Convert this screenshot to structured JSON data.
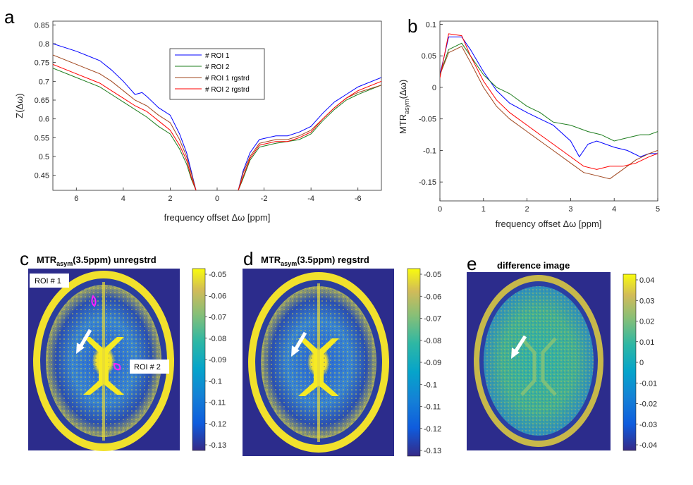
{
  "panel_labels": {
    "a": "a",
    "b": "b",
    "c": "c",
    "d": "d",
    "e": "e"
  },
  "colors": {
    "roi1": "#0000ff",
    "roi2": "#1e7d1e",
    "roi1_rgstrd": "#a0461e",
    "roi2_rgstrd": "#ff0000",
    "map_low": "#2c2c8c",
    "map_high": "#f8f014",
    "arrow": "#ffffff",
    "roi_marker": "#ff20ff"
  },
  "chart_data": [
    {
      "id": "a",
      "type": "line",
      "xlabel": "frequency offset Δω [ppm]",
      "ylabel": "Z(Δω)",
      "xlim": [
        7,
        -7
      ],
      "ylim": [
        0.41,
        0.86
      ],
      "xticks": [
        6,
        4,
        2,
        0,
        -2,
        -4,
        -6
      ],
      "xtick_labels": [
        "6",
        "4",
        "2",
        "0",
        "-2",
        "-4",
        "-6"
      ],
      "yticks": [
        0.45,
        0.5,
        0.55,
        0.6,
        0.65,
        0.7,
        0.75,
        0.8,
        0.85
      ],
      "ytick_labels": [
        "0.45",
        "0.5",
        "0.55",
        "0.6",
        "0.65",
        "0.7",
        "0.75",
        "0.8",
        "0.85"
      ],
      "legend_position": "top-center",
      "series": [
        {
          "name": "# ROI 1",
          "color_key": "roi1",
          "x": [
            7,
            6,
            5,
            4.5,
            4,
            3.5,
            3.2,
            3,
            2.5,
            2,
            1.6,
            1.3,
            1.1,
            0.9
          ],
          "y": [
            0.8,
            0.78,
            0.755,
            0.73,
            0.7,
            0.665,
            0.67,
            0.66,
            0.63,
            0.61,
            0.56,
            0.51,
            0.46,
            0.41
          ],
          "x2": [
            -0.9,
            -1.1,
            -1.4,
            -1.8,
            -2.5,
            -3,
            -3.5,
            -4,
            -4.5,
            -5,
            -5.5,
            -6,
            -7
          ],
          "y2": [
            0.41,
            0.46,
            0.51,
            0.545,
            0.555,
            0.555,
            0.565,
            0.58,
            0.615,
            0.645,
            0.665,
            0.685,
            0.71
          ]
        },
        {
          "name": "# ROI 2",
          "color_key": "roi2",
          "x": [
            7,
            6,
            5,
            4.5,
            4,
            3.5,
            3,
            2.5,
            2,
            1.6,
            1.3,
            1.1,
            0.9
          ],
          "y": [
            0.735,
            0.71,
            0.685,
            0.665,
            0.645,
            0.625,
            0.605,
            0.58,
            0.56,
            0.52,
            0.48,
            0.44,
            0.41
          ],
          "x2": [
            -0.9,
            -1.1,
            -1.4,
            -1.8,
            -2.5,
            -3,
            -3.5,
            -4,
            -4.5,
            -5,
            -5.5,
            -6,
            -7
          ],
          "y2": [
            0.41,
            0.44,
            0.49,
            0.525,
            0.535,
            0.54,
            0.545,
            0.56,
            0.595,
            0.625,
            0.65,
            0.665,
            0.69
          ]
        },
        {
          "name": "# ROI 1 rgstrd",
          "color_key": "roi1_rgstrd",
          "x": [
            7,
            6,
            5,
            4.5,
            4,
            3.5,
            3,
            2.5,
            2,
            1.6,
            1.3,
            1.1,
            0.9
          ],
          "y": [
            0.77,
            0.745,
            0.72,
            0.7,
            0.675,
            0.65,
            0.635,
            0.61,
            0.59,
            0.545,
            0.5,
            0.455,
            0.41
          ],
          "x2": [
            -0.9,
            -1.1,
            -1.4,
            -1.8,
            -2.5,
            -3,
            -3.5,
            -4,
            -4.5,
            -5,
            -5.5,
            -6,
            -7
          ],
          "y2": [
            0.41,
            0.455,
            0.5,
            0.535,
            0.545,
            0.545,
            0.555,
            0.57,
            0.6,
            0.63,
            0.655,
            0.67,
            0.69
          ]
        },
        {
          "name": "# ROI 2 rgstrd",
          "color_key": "roi2_rgstrd",
          "x": [
            7,
            6,
            5,
            4.5,
            4,
            3.5,
            3,
            2.5,
            2,
            1.6,
            1.3,
            1.1,
            0.9
          ],
          "y": [
            0.745,
            0.72,
            0.695,
            0.675,
            0.655,
            0.635,
            0.62,
            0.595,
            0.57,
            0.53,
            0.49,
            0.445,
            0.41
          ],
          "x2": [
            -0.9,
            -1.1,
            -1.4,
            -1.8,
            -2.5,
            -3,
            -3.5,
            -4,
            -4.5,
            -5,
            -5.5,
            -6,
            -7
          ],
          "y2": [
            0.41,
            0.445,
            0.495,
            0.53,
            0.54,
            0.54,
            0.55,
            0.565,
            0.6,
            0.63,
            0.655,
            0.675,
            0.7
          ]
        }
      ]
    },
    {
      "id": "b",
      "type": "line",
      "xlabel": "frequency offset Δω [ppm]",
      "ylabel_main": "MTR",
      "ylabel_sub": "asym",
      "ylabel_tail": "(Δω)",
      "xlim": [
        0,
        5
      ],
      "ylim": [
        -0.18,
        0.105
      ],
      "xticks": [
        0,
        1,
        2,
        3,
        4,
        5
      ],
      "xtick_labels": [
        "0",
        "1",
        "2",
        "3",
        "4",
        "5"
      ],
      "yticks": [
        -0.15,
        -0.1,
        -0.05,
        0,
        0.05,
        0.1
      ],
      "ytick_labels": [
        "-0.15",
        "-0.1",
        "-0.05",
        "0",
        "0.05",
        "0.1"
      ],
      "series": [
        {
          "name": "ROI 1",
          "color_key": "roi1",
          "x": [
            0,
            0.2,
            0.5,
            0.7,
            1.0,
            1.3,
            1.6,
            2.0,
            2.3,
            2.6,
            3.0,
            3.2,
            3.4,
            3.6,
            4.0,
            4.3,
            4.6,
            4.8,
            5.0
          ],
          "y": [
            0.02,
            0.08,
            0.08,
            0.06,
            0.025,
            -0.005,
            -0.025,
            -0.04,
            -0.05,
            -0.06,
            -0.085,
            -0.11,
            -0.09,
            -0.085,
            -0.095,
            -0.1,
            -0.11,
            -0.105,
            -0.105
          ]
        },
        {
          "name": "ROI 2",
          "color_key": "roi2",
          "x": [
            0,
            0.2,
            0.5,
            0.7,
            1.0,
            1.3,
            1.6,
            2.0,
            2.3,
            2.6,
            3.0,
            3.4,
            3.7,
            4.0,
            4.3,
            4.6,
            4.8,
            5.0
          ],
          "y": [
            0.02,
            0.06,
            0.07,
            0.05,
            0.02,
            0.0,
            -0.01,
            -0.03,
            -0.04,
            -0.055,
            -0.06,
            -0.07,
            -0.075,
            -0.085,
            -0.08,
            -0.075,
            -0.075,
            -0.07
          ]
        },
        {
          "name": "ROI 1 rgstrd",
          "color_key": "roi1_rgstrd",
          "x": [
            0,
            0.2,
            0.5,
            0.7,
            1.0,
            1.3,
            1.6,
            2.0,
            2.3,
            2.6,
            3.0,
            3.3,
            3.6,
            3.9,
            4.2,
            4.5,
            4.8,
            5.0
          ],
          "y": [
            0.02,
            0.055,
            0.065,
            0.04,
            0.0,
            -0.03,
            -0.05,
            -0.07,
            -0.085,
            -0.1,
            -0.12,
            -0.135,
            -0.14,
            -0.145,
            -0.13,
            -0.115,
            -0.105,
            -0.1
          ]
        },
        {
          "name": "ROI 2 rgstrd",
          "color_key": "roi2_rgstrd",
          "x": [
            0,
            0.2,
            0.5,
            0.7,
            1.0,
            1.3,
            1.6,
            2.0,
            2.3,
            2.6,
            3.0,
            3.3,
            3.6,
            3.9,
            4.2,
            4.5,
            4.8,
            5.0
          ],
          "y": [
            0.015,
            0.085,
            0.082,
            0.05,
            0.01,
            -0.02,
            -0.04,
            -0.06,
            -0.075,
            -0.09,
            -0.11,
            -0.125,
            -0.13,
            -0.125,
            -0.125,
            -0.12,
            -0.11,
            -0.105
          ]
        }
      ]
    },
    {
      "id": "c",
      "type": "heatmap",
      "title_main": "MTR",
      "title_sub": "asym",
      "title_tail": "(3.5ppm) unregstrd",
      "colorbar_ticks": [
        "-0.05",
        "-0.06",
        "-0.07",
        "-0.08",
        "-0.09",
        "-0.1",
        "-0.11",
        "-0.12",
        "-0.13"
      ],
      "colorbar_range": [
        -0.135,
        -0.048
      ],
      "annotations": [
        "ROI # 1",
        "ROI # 2"
      ]
    },
    {
      "id": "d",
      "type": "heatmap",
      "title_main": "MTR",
      "title_sub": "asym",
      "title_tail": "(3.5ppm) regstrd",
      "colorbar_ticks": [
        "-0.05",
        "-0.06",
        "-0.07",
        "-0.08",
        "-0.09",
        "-0.1",
        "-0.11",
        "-0.12",
        "-0.13"
      ],
      "colorbar_range": [
        -0.135,
        -0.048
      ]
    },
    {
      "id": "e",
      "type": "heatmap",
      "title": "difference image",
      "colorbar_ticks": [
        "0.04",
        "0.03",
        "0.02",
        "0.01",
        "0",
        "-0.01",
        "-0.02",
        "-0.03",
        "-0.04"
      ],
      "colorbar_range": [
        -0.04,
        0.04
      ]
    }
  ]
}
